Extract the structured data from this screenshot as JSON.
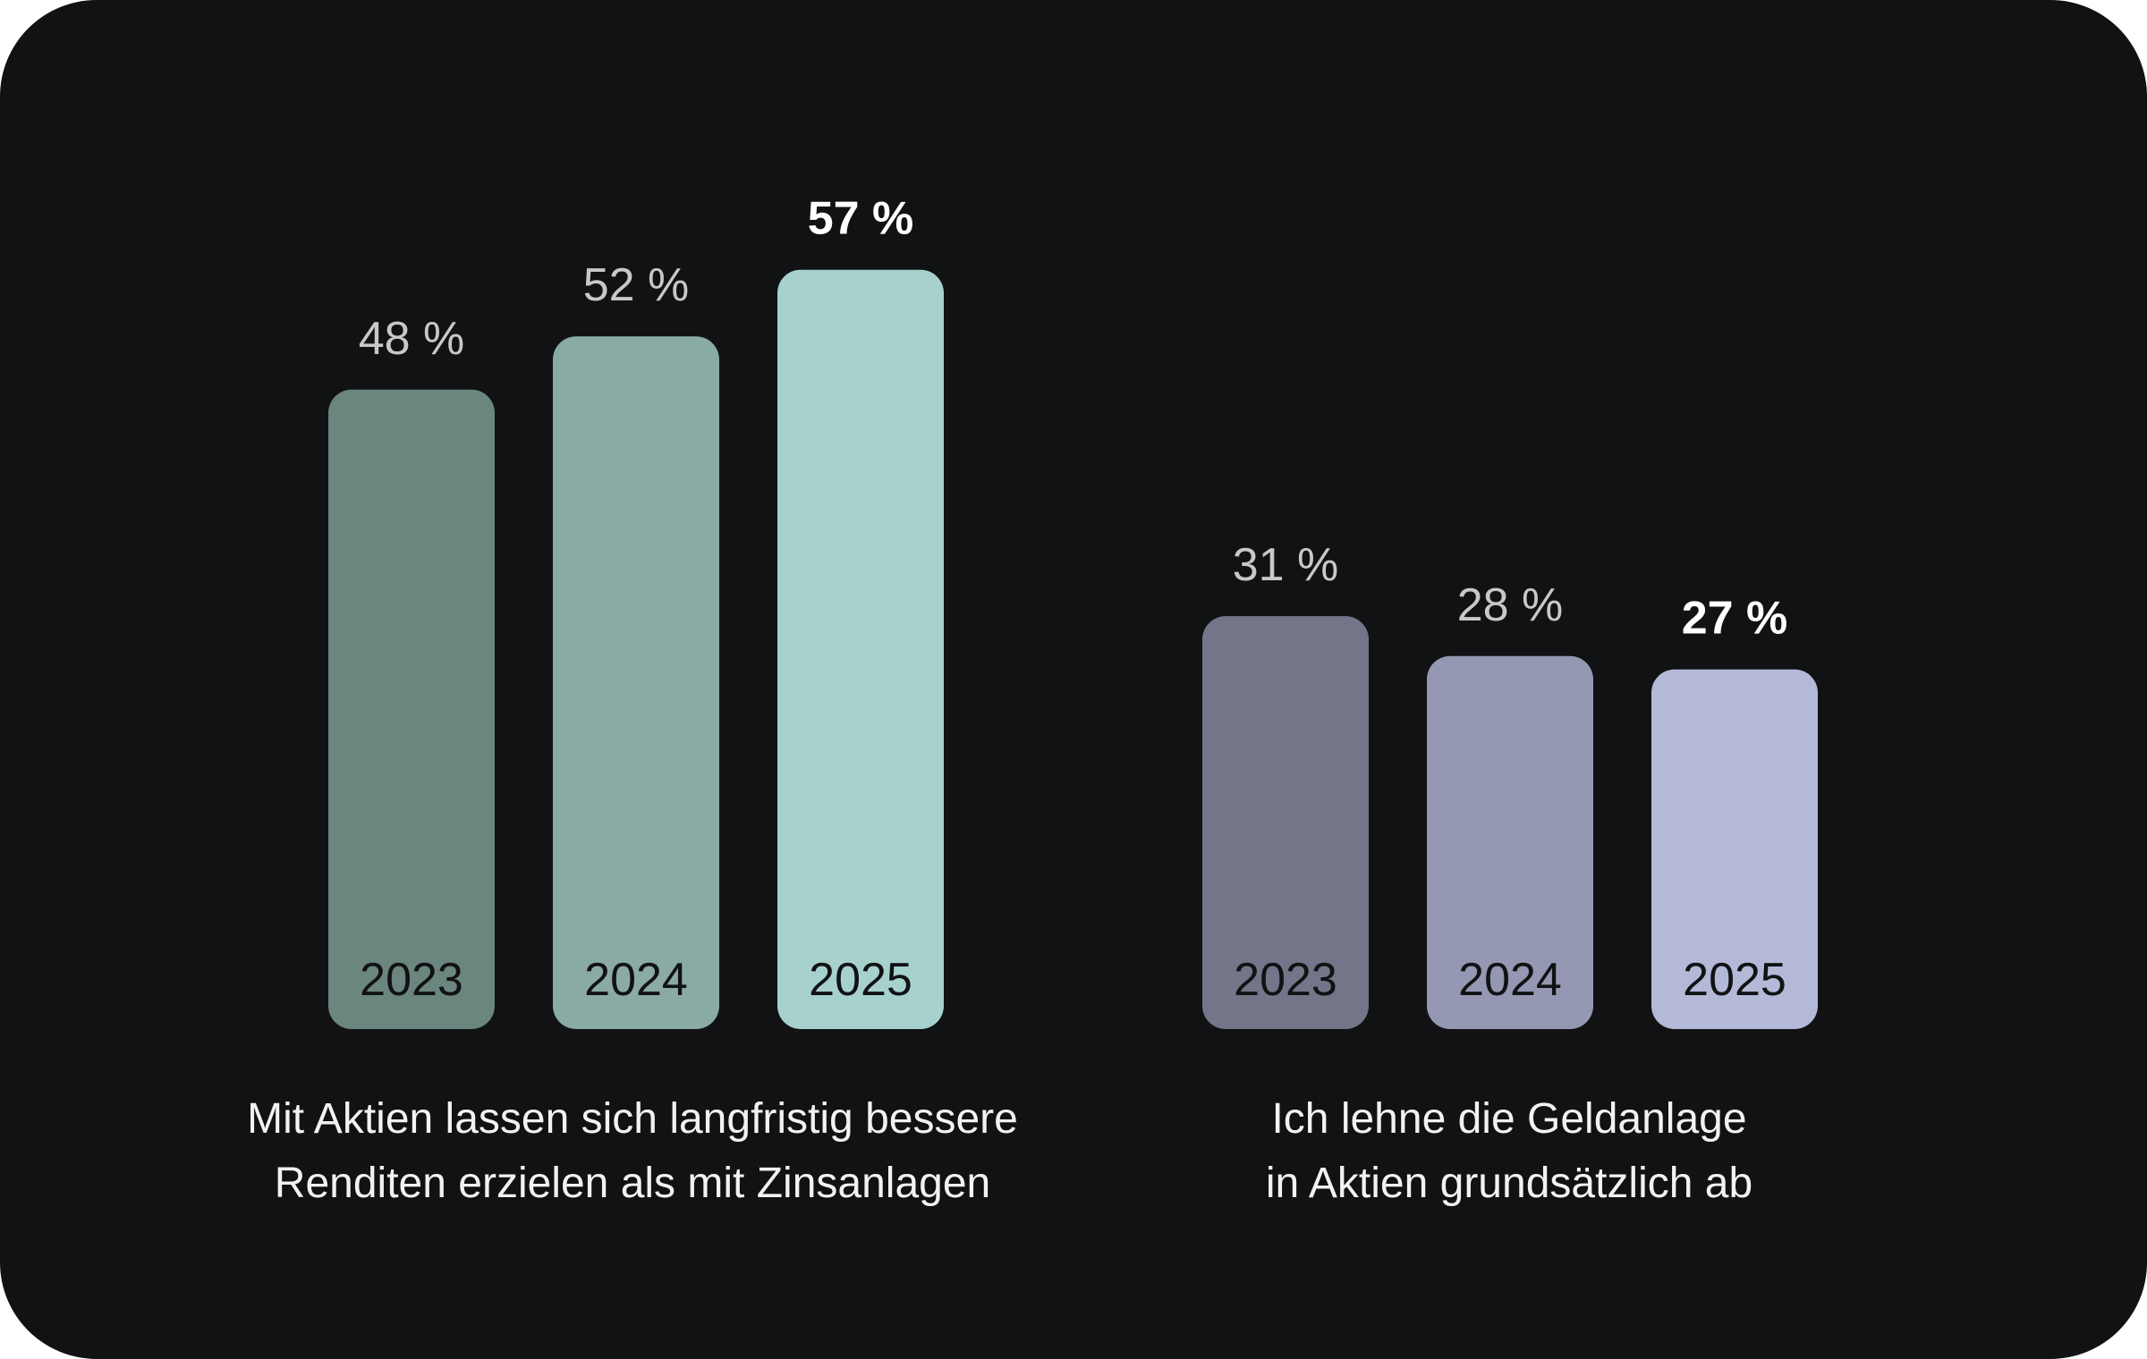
{
  "chart_data": [
    {
      "type": "bar",
      "caption": [
        "Mit Aktien lassen sich langfristig bessere",
        "Renditen erzielen als mit Zinsanlagen"
      ],
      "categories": [
        "2023",
        "2024",
        "2025"
      ],
      "values": [
        48,
        52,
        57
      ],
      "value_labels": [
        "48 %",
        "52 %",
        "57 %"
      ],
      "colors": [
        "#6b857f",
        "#8aaaa5",
        "#a7d1cc"
      ],
      "highlight_index": 2,
      "grid": false
    },
    {
      "type": "bar",
      "caption": [
        "Ich lehne die Geldanlage",
        "in Aktien grundsätzlich ab"
      ],
      "categories": [
        "2023",
        "2024",
        "2025"
      ],
      "values": [
        31,
        28,
        27
      ],
      "value_labels": [
        "31 %",
        "28 %",
        "27 %"
      ],
      "colors": [
        "#737689",
        "#9598b2",
        "#b5b9d8"
      ],
      "highlight_index": 2,
      "grid": false
    }
  ],
  "colors": {
    "background": "#111214",
    "label": "#c8c8c8",
    "highlight_label": "#ffffff",
    "year_text": "#111214"
  }
}
